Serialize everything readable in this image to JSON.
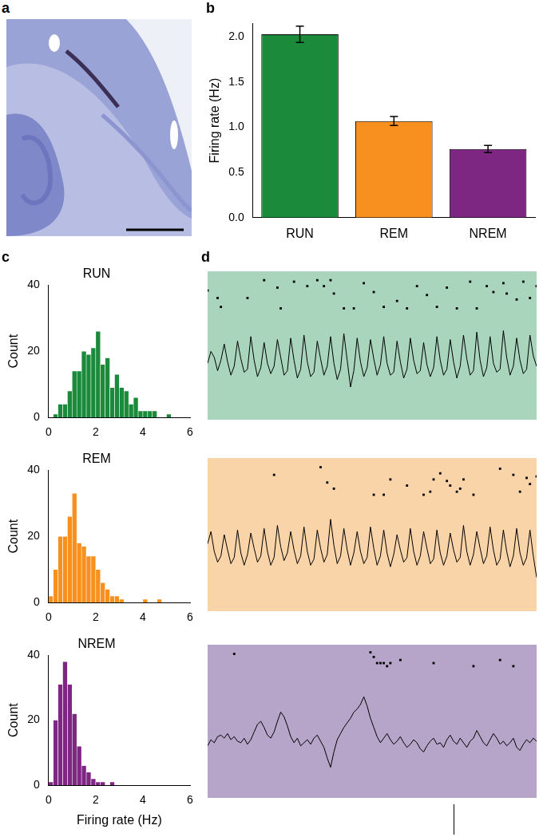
{
  "chart_data": [
    {
      "panel": "a",
      "type": "image"
    },
    {
      "panel": "b",
      "type": "bar",
      "categories": [
        "RUN",
        "REM",
        "NREM"
      ],
      "values": [
        2.03,
        1.07,
        0.76
      ],
      "errors": [
        0.09,
        0.05,
        0.04
      ],
      "colors": [
        "#1b8a3a",
        "#f7901e",
        "#7d2782"
      ],
      "ylabel": "Firing rate (Hz)",
      "ylim": [
        0,
        2.15
      ],
      "yticks": [
        {
          "value": 0,
          "label": "0.0"
        },
        {
          "value": 0.5,
          "label": "0.5"
        },
        {
          "value": 1,
          "label": "1.0"
        },
        {
          "value": 1.5,
          "label": "1.5"
        },
        {
          "value": 2,
          "label": "2.0"
        }
      ],
      "grid": false
    },
    {
      "panel": "c",
      "type": "histogram",
      "title": "RUN",
      "ylabel": "Count",
      "color": "#1b8a3a",
      "grid": false,
      "bins": [
        0,
        0.2,
        0.4,
        0.6,
        0.8,
        1.0,
        1.2,
        1.4,
        1.6,
        1.8,
        2.0,
        2.2,
        2.4,
        2.6,
        2.8,
        3.0,
        3.2,
        3.4,
        3.6,
        3.8,
        4.0,
        4.2,
        4.4,
        4.6,
        4.8,
        5.0,
        5.2,
        5.4,
        5.6,
        5.8,
        6.0
      ],
      "values": [
        0,
        1,
        4,
        4,
        8,
        14,
        14,
        20,
        19,
        21,
        26,
        16,
        18,
        9,
        13,
        9,
        8,
        4,
        6,
        2,
        2,
        2,
        2,
        0,
        0,
        1,
        0,
        0,
        0,
        0
      ],
      "xlim": [
        0,
        6
      ],
      "xticks": [
        0,
        2,
        4,
        6
      ],
      "ylim": [
        0,
        40
      ],
      "yticks": [
        0,
        20,
        40
      ]
    },
    {
      "type": "histogram",
      "title": "REM",
      "ylabel": "Count",
      "color": "#f7901e",
      "grid": false,
      "bins": [
        0,
        0.2,
        0.4,
        0.6,
        0.8,
        1.0,
        1.2,
        1.4,
        1.6,
        1.8,
        2.0,
        2.2,
        2.4,
        2.6,
        2.8,
        3.0,
        3.2,
        3.4,
        3.6,
        3.8,
        4.0,
        4.2,
        4.4,
        4.6,
        4.8,
        5.0,
        5.2,
        5.4,
        5.6,
        5.8,
        6.0
      ],
      "values": [
        2,
        10,
        20,
        20,
        26,
        33,
        18,
        17,
        14,
        14,
        10,
        6,
        4,
        2,
        2,
        1,
        0,
        0,
        0,
        0,
        1,
        0,
        0,
        1,
        0,
        0,
        0,
        0,
        0,
        0
      ],
      "xlim": [
        0,
        6
      ],
      "xticks": [
        0,
        2,
        4,
        6
      ],
      "ylim": [
        0,
        40
      ],
      "yticks": [
        0,
        20,
        40
      ]
    },
    {
      "type": "histogram",
      "title": "NREM",
      "ylabel": "Count",
      "xlabel": "Firing rate (Hz)",
      "color": "#7d2782",
      "grid": false,
      "bins": [
        0,
        0.2,
        0.4,
        0.6,
        0.8,
        1.0,
        1.2,
        1.4,
        1.6,
        1.8,
        2.0,
        2.2,
        2.4,
        2.6,
        2.8,
        3.0,
        3.2,
        3.4,
        3.6,
        3.8,
        4.0,
        4.2,
        4.4,
        4.6,
        4.8,
        5.0,
        5.2,
        5.4,
        5.6,
        5.8,
        6.0
      ],
      "values": [
        1,
        20,
        31,
        38,
        31,
        22,
        12,
        6,
        4,
        2,
        1,
        1,
        0,
        1,
        0,
        0,
        0,
        0,
        0,
        0,
        0,
        0,
        0,
        0,
        0,
        0,
        0,
        0,
        0,
        0
      ],
      "xlim": [
        0,
        6
      ],
      "xticks": [
        0,
        2,
        4,
        6
      ],
      "ylim": [
        0,
        40
      ],
      "yticks": [
        0,
        20,
        40
      ]
    },
    {
      "panel": "d",
      "type": "line",
      "color": "#a8d5bc",
      "tick_labels": false,
      "xlim": [
        0,
        99
      ],
      "ylim": [
        0,
        10
      ],
      "values": [
        3.8,
        4.6,
        4.2,
        3.3,
        4.0,
        5.1,
        3.9,
        3.0,
        3.6,
        5.3,
        4.1,
        3.2,
        3.4,
        5.6,
        4.0,
        2.9,
        3.5,
        5.2,
        3.8,
        3.1,
        3.6,
        5.4,
        4.2,
        3.0,
        3.3,
        5.5,
        4.0,
        2.8,
        3.4,
        5.7,
        3.9,
        2.9,
        3.2,
        5.3,
        4.1,
        3.0,
        3.6,
        5.6,
        3.8,
        2.7,
        3.4,
        5.8,
        4.0,
        2.2,
        3.3,
        5.5,
        3.9,
        2.9,
        3.5,
        5.4,
        4.1,
        3.0,
        3.7,
        5.6,
        3.8,
        3.0,
        3.2,
        5.3,
        3.9,
        2.8,
        3.4,
        5.5,
        4.0,
        3.1,
        3.3,
        5.2,
        3.7,
        2.9,
        3.5,
        5.6,
        4.0,
        3.0,
        3.4,
        5.4,
        3.9,
        2.8,
        3.6,
        5.7,
        4.1,
        3.0,
        3.3,
        5.9,
        4.0,
        2.9,
        3.5,
        5.6,
        3.8,
        3.2,
        3.4,
        6.0,
        4.2,
        3.0,
        3.6,
        5.5,
        4.0,
        3.1,
        3.4,
        5.7,
        4.3,
        3.6
      ],
      "spikes": {
        "type": "scatter",
        "marker": "square",
        "x": [
          0,
          3,
          4,
          12,
          17,
          21,
          22,
          26,
          30,
          33,
          35,
          37,
          38,
          41,
          44,
          47,
          50,
          53,
          57,
          60,
          63,
          66,
          69,
          72,
          75,
          79,
          81,
          84,
          86,
          89,
          90,
          93,
          95,
          97,
          99
        ],
        "y": [
          8.7,
          8.2,
          7.6,
          8.2,
          9.4,
          8.9,
          7.5,
          9.3,
          9.0,
          9.4,
          9.0,
          9.4,
          8.5,
          7.5,
          7.5,
          9.2,
          8.6,
          7.6,
          8.0,
          7.5,
          9.0,
          8.4,
          7.6,
          8.9,
          7.5,
          9.3,
          7.5,
          9.0,
          8.6,
          9.2,
          8.5,
          8.1,
          9.3,
          8.2,
          9.0
        ]
      }
    },
    {
      "type": "line",
      "color": "#f9d4a9",
      "tick_labels": false,
      "xlim": [
        0,
        99
      ],
      "ylim": [
        0,
        10
      ],
      "values": [
        4.4,
        5.2,
        3.9,
        3.2,
        3.6,
        5.0,
        4.0,
        3.1,
        3.5,
        5.3,
        3.8,
        3.0,
        3.7,
        5.1,
        4.1,
        3.2,
        3.6,
        5.4,
        3.9,
        3.0,
        3.5,
        5.6,
        4.2,
        3.3,
        3.8,
        5.2,
        4.0,
        3.1,
        3.6,
        5.5,
        3.9,
        3.0,
        3.4,
        5.3,
        4.1,
        3.2,
        3.7,
        6.0,
        4.3,
        3.1,
        3.6,
        5.4,
        4.0,
        3.0,
        3.8,
        5.2,
        3.9,
        3.1,
        3.5,
        5.5,
        4.1,
        3.0,
        3.6,
        5.3,
        3.8,
        2.9,
        3.7,
        5.0,
        4.0,
        3.2,
        3.5,
        5.4,
        3.9,
        3.0,
        3.6,
        5.2,
        4.1,
        3.1,
        3.4,
        5.3,
        3.8,
        3.0,
        3.6,
        5.1,
        4.0,
        3.2,
        3.5,
        5.6,
        3.9,
        3.0,
        3.7,
        5.2,
        4.1,
        3.1,
        3.6,
        5.5,
        4.0,
        3.0,
        3.4,
        5.3,
        3.9,
        2.9,
        3.6,
        5.4,
        3.8,
        3.0,
        3.5,
        5.3,
        3.6,
        2.2
      ],
      "spikes": {
        "type": "scatter",
        "marker": "square",
        "x": [
          20,
          34,
          36,
          38,
          50,
          53,
          55,
          60,
          65,
          67,
          68,
          70,
          72,
          73,
          75,
          76,
          77,
          80,
          88,
          92,
          94,
          96,
          97,
          99
        ],
        "y": [
          8.9,
          9.4,
          8.4,
          8.0,
          7.6,
          7.6,
          8.6,
          8.2,
          7.6,
          7.8,
          8.6,
          9.0,
          8.5,
          8.2,
          7.8,
          8.0,
          8.6,
          7.6,
          9.3,
          8.9,
          7.8,
          8.7,
          8.3,
          8.8
        ]
      }
    },
    {
      "type": "line",
      "color": "#b6a4c9",
      "tick_labels": false,
      "xlim": [
        0,
        99
      ],
      "ylim": [
        0,
        10
      ],
      "values": [
        3.4,
        3.8,
        3.6,
        4.0,
        4.1,
        3.9,
        4.2,
        3.8,
        4.0,
        3.7,
        3.6,
        3.9,
        3.5,
        3.8,
        4.3,
        4.8,
        5.0,
        4.6,
        4.1,
        3.9,
        4.3,
        5.0,
        5.6,
        5.3,
        4.7,
        4.0,
        3.6,
        3.9,
        3.4,
        3.6,
        3.8,
        3.5,
        3.9,
        4.1,
        3.7,
        3.3,
        2.6,
        2.0,
        3.0,
        3.8,
        4.2,
        4.6,
        4.9,
        5.2,
        5.6,
        5.8,
        6.1,
        6.6,
        6.0,
        5.2,
        4.6,
        4.0,
        3.6,
        3.9,
        4.2,
        3.8,
        3.5,
        3.7,
        4.0,
        3.6,
        3.3,
        3.5,
        3.8,
        3.6,
        3.2,
        3.0,
        3.4,
        3.7,
        3.9,
        3.5,
        3.6,
        3.3,
        3.8,
        4.1,
        3.7,
        3.5,
        3.9,
        3.6,
        3.3,
        3.7,
        3.9,
        4.4,
        4.0,
        3.6,
        3.4,
        3.8,
        4.2,
        3.9,
        3.5,
        3.7,
        3.4,
        3.6,
        3.9,
        3.3,
        3.1,
        3.5,
        3.8,
        3.6,
        3.9,
        3.7
      ],
      "spikes": {
        "type": "scatter",
        "marker": "square",
        "x": [
          8,
          49,
          50,
          51,
          52,
          53,
          54,
          55,
          58,
          68,
          80,
          88,
          92
        ],
        "y": [
          9.4,
          9.5,
          9.2,
          8.8,
          8.8,
          8.8,
          8.6,
          8.8,
          9.0,
          8.8,
          8.6,
          9.0,
          8.6
        ]
      }
    }
  ]
}
